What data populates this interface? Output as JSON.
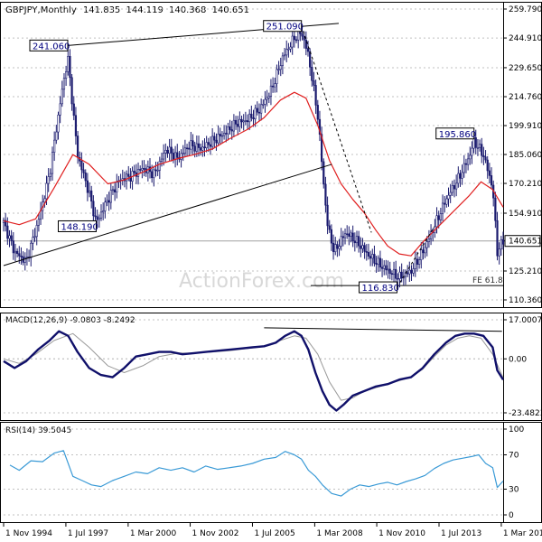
{
  "header": {
    "symbol": "GBPJPY",
    "period": "Monthly",
    "ohlc": [
      "141.835",
      "144.119",
      "140.368",
      "140.651"
    ]
  },
  "watermark": "ActionForex.com",
  "colors": {
    "candle_body": "#1a1a6e",
    "sma": "#e02020",
    "macd": "#10106a",
    "signal": "#999999",
    "rsi": "#3a9ad6",
    "trendline": "#000000",
    "grid": "#c0c0c0",
    "current": "#a0a0a0"
  },
  "chart_data": [
    {
      "type": "candlestick",
      "panel": "price",
      "ylim": [
        110.36,
        259.79
      ],
      "xlim": [
        1994.83,
        2016.25
      ],
      "y_ticks": [
        "259.790",
        "244.910",
        "229.650",
        "214.760",
        "199.910",
        "185.060",
        "170.210",
        "154.910",
        "140.651",
        "125.210",
        "110.360"
      ],
      "current_price": 140.651,
      "labels": [
        {
          "text": "241.060",
          "x": 1997.58,
          "y": 241.06
        },
        {
          "text": "251.090",
          "x": 2007.6,
          "y": 251.09
        },
        {
          "text": "148.190",
          "x": 1998.8,
          "y": 148.19
        },
        {
          "text": "195.860",
          "x": 2015.0,
          "y": 195.86
        },
        {
          "text": "116.830",
          "x": 2011.7,
          "y": 116.83
        }
      ],
      "fib_label": "FE 61.8",
      "fib_level": 117.7,
      "series": [
        {
          "name": "closes",
          "x": [
            1994.83,
            1995.3,
            1995.8,
            1996.3,
            1996.8,
            1997.3,
            1997.58,
            1998.0,
            1998.5,
            1998.8,
            1999.3,
            1999.8,
            2000.3,
            2000.8,
            2001.3,
            2001.8,
            2002.3,
            2002.8,
            2003.3,
            2003.8,
            2004.3,
            2004.8,
            2005.3,
            2005.8,
            2006.3,
            2006.8,
            2007.3,
            2007.6,
            2007.9,
            2008.3,
            2008.7,
            2009.0,
            2009.5,
            2010.0,
            2010.5,
            2011.0,
            2011.5,
            2011.8,
            2012.3,
            2012.8,
            2013.3,
            2013.8,
            2014.3,
            2014.8,
            2015.0,
            2015.4,
            2015.8,
            2016.0,
            2016.25
          ],
          "values": [
            150,
            135,
            130,
            150,
            175,
            215,
            235,
            185,
            165,
            150,
            162,
            172,
            174,
            178,
            175,
            188,
            183,
            190,
            188,
            192,
            196,
            201,
            203,
            208,
            218,
            235,
            245,
            248,
            236,
            205,
            150,
            135,
            145,
            140,
            133,
            128,
            124,
            122,
            125,
            135,
            148,
            162,
            172,
            184,
            192,
            185,
            168,
            135,
            140.651
          ]
        },
        {
          "name": "sma",
          "x": [
            1994.83,
            1995.5,
            1996.2,
            1997.0,
            1997.8,
            1998.5,
            1999.3,
            2000.0,
            2000.8,
            2001.5,
            2002.3,
            2003.0,
            2003.8,
            2004.5,
            2005.3,
            2006.0,
            2006.7,
            2007.3,
            2007.8,
            2008.3,
            2008.8,
            2009.3,
            2009.8,
            2010.3,
            2010.8,
            2011.3,
            2011.8,
            2012.3,
            2012.8,
            2013.3,
            2013.8,
            2014.3,
            2014.8,
            2015.3,
            2015.8,
            2016.25
          ],
          "values": [
            151,
            149,
            152,
            168,
            185,
            180,
            170,
            172,
            176,
            180,
            183,
            185,
            188,
            193,
            198,
            204,
            213,
            217,
            214,
            200,
            182,
            170,
            162,
            155,
            146,
            138,
            134,
            133,
            140,
            146,
            152,
            158,
            164,
            171,
            167,
            158
          ]
        }
      ]
    },
    {
      "type": "line",
      "panel": "macd",
      "title": "MACD(12,26,9) -9.0803 -8.2492",
      "ylim": [
        -23.4823,
        17.0007
      ],
      "y_ticks": [
        "17.0007",
        "0.00",
        "-23.4823"
      ],
      "xlim": [
        1994.83,
        2016.25
      ],
      "series": [
        {
          "name": "macd",
          "x": [
            1994.83,
            1995.3,
            1995.8,
            1996.3,
            1996.8,
            1997.2,
            1997.6,
            1998.0,
            1998.5,
            1999.0,
            1999.5,
            2000.0,
            2000.5,
            2001.0,
            2001.5,
            2002.0,
            2002.5,
            2003.0,
            2003.5,
            2004.0,
            2004.5,
            2005.0,
            2005.5,
            2006.0,
            2006.5,
            2006.9,
            2007.3,
            2007.6,
            2007.9,
            2008.2,
            2008.5,
            2008.8,
            2009.1,
            2009.4,
            2009.8,
            2010.3,
            2010.8,
            2011.3,
            2011.8,
            2012.3,
            2012.8,
            2013.3,
            2013.8,
            2014.2,
            2014.6,
            2015.0,
            2015.4,
            2015.8,
            2016.0,
            2016.25
          ],
          "values": [
            -1,
            -4,
            -1,
            4,
            8,
            12,
            10,
            3,
            -4,
            -7,
            -8,
            -4,
            1,
            2,
            3,
            3,
            2,
            2.5,
            3,
            3.5,
            4,
            4.5,
            5,
            5.5,
            7,
            10,
            12,
            10,
            4,
            -6,
            -14,
            -20,
            -22.5,
            -20,
            -16,
            -14,
            -12,
            -11,
            -9,
            -8,
            -4,
            2,
            7,
            10,
            11,
            11,
            10,
            5,
            -5,
            -9.0803
          ]
        },
        {
          "name": "signal",
          "x": [
            1994.83,
            1995.5,
            1996.2,
            1997.0,
            1997.8,
            1998.5,
            1999.3,
            2000.0,
            2000.8,
            2001.5,
            2002.3,
            2003.0,
            2003.8,
            2004.5,
            2005.3,
            2006.0,
            2006.7,
            2007.3,
            2007.8,
            2008.3,
            2008.8,
            2009.3,
            2009.8,
            2010.3,
            2010.8,
            2011.3,
            2011.8,
            2012.3,
            2012.8,
            2013.3,
            2013.8,
            2014.3,
            2014.8,
            2015.3,
            2015.8,
            2016.25
          ],
          "values": [
            0,
            -2,
            2,
            8,
            11,
            5,
            -3,
            -6,
            -3,
            1,
            2.5,
            2.5,
            3,
            3.5,
            4.5,
            5.5,
            8,
            10,
            9,
            2,
            -10,
            -18,
            -17,
            -14,
            -12.5,
            -11,
            -9.5,
            -8,
            -4.5,
            1,
            6,
            9,
            10,
            9,
            2,
            -8.2492
          ]
        }
      ]
    },
    {
      "type": "line",
      "panel": "rsi",
      "title": "RSI(14) 39.5045",
      "ylim": [
        0,
        100
      ],
      "y_ticks": [
        "100",
        "70",
        "30",
        "0"
      ],
      "xlim": [
        1994.83,
        2016.25
      ],
      "series": [
        {
          "name": "rsi",
          "x": [
            1995.1,
            1995.5,
            1996.0,
            1996.5,
            1997.0,
            1997.4,
            1997.8,
            1998.2,
            1998.6,
            1999.0,
            1999.5,
            2000.0,
            2000.5,
            2001.0,
            2001.5,
            2002.0,
            2002.5,
            2003.0,
            2003.5,
            2004.0,
            2004.5,
            2005.0,
            2005.5,
            2006.0,
            2006.5,
            2006.9,
            2007.3,
            2007.6,
            2007.9,
            2008.2,
            2008.5,
            2008.9,
            2009.3,
            2009.7,
            2010.1,
            2010.5,
            2010.9,
            2011.3,
            2011.7,
            2012.1,
            2012.5,
            2012.9,
            2013.3,
            2013.7,
            2014.1,
            2014.5,
            2014.9,
            2015.2,
            2015.5,
            2015.8,
            2016.0,
            2016.25
          ],
          "values": [
            58,
            52,
            63,
            62,
            72,
            75,
            45,
            40,
            35,
            33,
            40,
            45,
            50,
            48,
            55,
            52,
            55,
            50,
            57,
            53,
            55,
            57,
            60,
            65,
            67,
            74,
            70,
            65,
            52,
            45,
            35,
            25,
            22,
            30,
            35,
            33,
            36,
            38,
            35,
            39,
            42,
            46,
            54,
            60,
            64,
            66,
            68,
            70,
            60,
            55,
            32,
            39.5045
          ]
        }
      ]
    }
  ],
  "x_axis": {
    "ticks": [
      {
        "label": "1 Nov 1994",
        "x": 1994.83
      },
      {
        "label": "1 Jul 1997",
        "x": 1997.5
      },
      {
        "label": "1 Mar 2000",
        "x": 2000.17
      },
      {
        "label": "1 Nov 2002",
        "x": 2002.83
      },
      {
        "label": "1 Jul 2005",
        "x": 2005.5
      },
      {
        "label": "1 Mar 2008",
        "x": 2008.17
      },
      {
        "label": "1 Nov 2010",
        "x": 2010.83
      },
      {
        "label": "1 Jul 2013",
        "x": 2013.5
      },
      {
        "label": "1 Mar 2016",
        "x": 2016.17
      }
    ]
  }
}
